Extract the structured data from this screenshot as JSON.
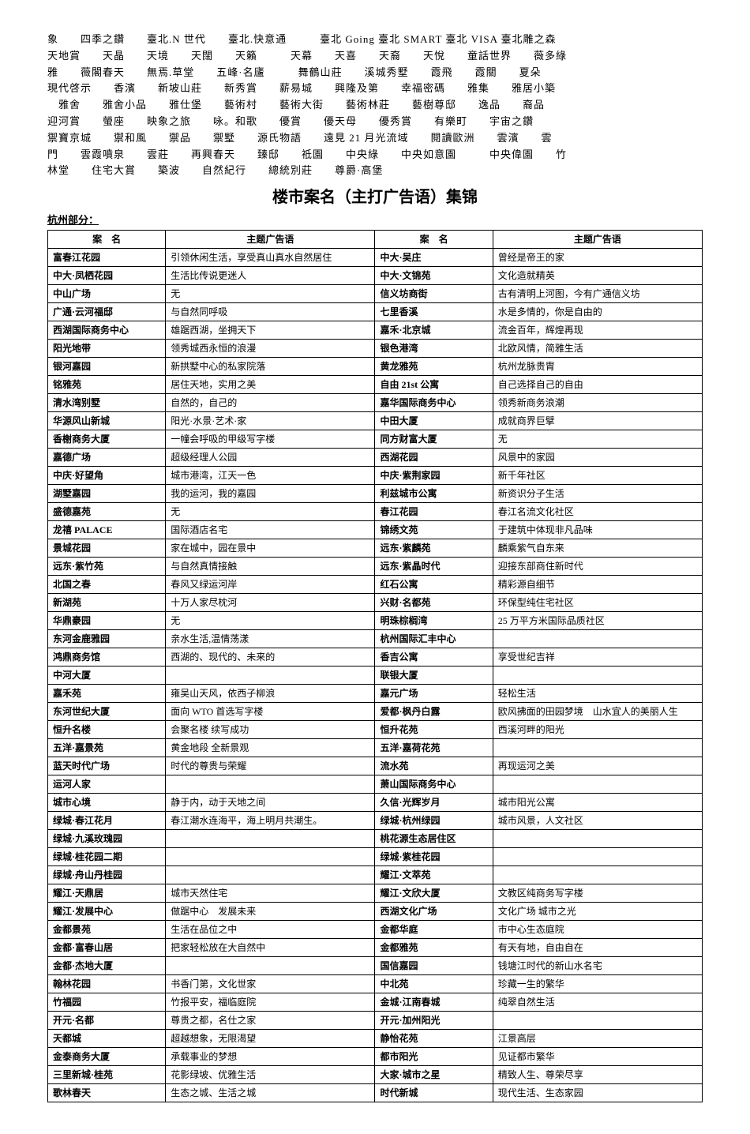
{
  "header": {
    "lines": [
      "象　　四季之鑽　　臺北.N 世代　　臺北.快意通　　　臺北 Going  臺北 SMART  臺北 VISA  臺北雕之森",
      "天地賞　　天晶　　天境　　天闊　　天籟　　　天幕　　天喜　　天裔　　天悅　　童話世界　　薇多綠",
      "雅　　薇閣春天　　無焉.草堂　　五峰·名廬　　　舞鶴山莊　　溪城秀墅　　霞飛　　霞關　　夏朵",
      "現代啓示　　香濱　　新坡山莊　　新秀賞　　薪易城　　興隆及第　　幸福密碼　　雅集　　雅居小築",
      "　雅舍　　雅舍小品　　雅仕堡　　藝術村　　藝術大街　　藝術林莊　　藝樹尊邸　　逸品　　裔品",
      "迎河賞　　螢座　　映象之旅　　咏。和歌　　優賞　　優天母　　優秀賞　　有樂町　　宇宙之鑽",
      "禦寶京城　　禦和風　　禦品　　禦墅　　源氏物語　　遠見 21  月光流域　　閱讀歐洲　　雲濱　　雲",
      "門　　雲霞噴泉　　雲莊　　再興春天　　臻邸　　祗園　　中央綠　　中央如意園　　　中央偉園　　竹",
      "林堂　　住宅大賞　　築波　　自然紀行　　總統別莊　　尊爵·高堡"
    ]
  },
  "title": "楼市案名（主打广告语）集锦",
  "section": "杭州部分：",
  "table": {
    "headers": [
      "案　名",
      "主题广告语",
      "案　名",
      "主题广告语"
    ],
    "rows": [
      [
        "富春江花园",
        "引领休闲生活，享受真山真水自然居住",
        "中大·吴庄",
        "曾经是帝王的家"
      ],
      [
        "中大·凤栖花园",
        "生活比传说更迷人",
        "中大·文锦苑",
        "文化造就精英"
      ],
      [
        "中山广场",
        "无",
        "信义坊商街",
        "古有清明上河图，今有广通信义坊"
      ],
      [
        "广通·云河福邸",
        "与自然同呼吸",
        "七里香溪",
        "水是多情的，你是自由的"
      ],
      [
        "西湖国际商务中心",
        "雄踞西湖，坐拥天下",
        "嘉禾·北京城",
        "流金百年，辉煌再现"
      ],
      [
        "阳光地带",
        "领秀城西永恒的浪漫",
        "银色港湾",
        "北欧风情，简雅生活"
      ],
      [
        "银河嘉园",
        "新拱墅中心的私家院落",
        "黄龙雅苑",
        "杭州龙脉贵胄"
      ],
      [
        "铭雅苑",
        "居住天地，实用之美",
        "自由 21st 公寓",
        "自己选择自己的自由"
      ],
      [
        "清水湾别墅",
        "自然的，自己的",
        "嘉华国际商务中心",
        "领秀新商务浪潮"
      ],
      [
        "华源风山新城",
        "阳光·水景·艺术·家",
        "中田大厦",
        "成就商界巨擘"
      ],
      [
        "香榭商务大厦",
        "一幢会呼吸的甲级写字楼",
        "同方财富大厦",
        "无"
      ],
      [
        "嘉德广场",
        "超级经理人公园",
        "西湖花园",
        "风景中的家园"
      ],
      [
        "中庆·好望角",
        "城市港湾，江天一色",
        "中庆·紫荆家园",
        "新千年社区"
      ],
      [
        "湖墅嘉园",
        "我的运河，我的嘉园",
        "利兹城市公寓",
        "新资识分子生活"
      ],
      [
        "盛德嘉苑",
        "无",
        "春江花园",
        "春江名流文化社区"
      ],
      [
        "龙禧 PALACE",
        "国际酒店名宅",
        "锦绣文苑",
        "于建筑中体现非凡品味"
      ],
      [
        "景城花园",
        "家在城中，园在景中",
        "远东·紫麟苑",
        "麟乘紫气自东来"
      ],
      [
        "远东·紫竹苑",
        "与自然真情接触",
        "远东·紫晶时代",
        "迎接东部商住新时代"
      ],
      [
        "北国之春",
        "春风又绿运河岸",
        "红石公寓",
        "精彩源自细节"
      ],
      [
        "新湖苑",
        "十万人家尽枕河",
        "兴财·名都苑",
        "环保型纯住宅社区"
      ],
      [
        "华鼎豪园",
        "无",
        "明珠棕榈湾",
        "25 万平方米国际品质社区"
      ],
      [
        "东河金鹿雅园",
        "亲水生活,温情荡漾",
        "杭州国际汇丰中心",
        ""
      ],
      [
        "鸿鼎商务馆",
        "西湖的、现代的、未来的",
        "香吉公寓",
        "享受世纪吉祥"
      ],
      [
        "中河大厦",
        "",
        "联银大厦",
        ""
      ],
      [
        "嘉禾苑",
        "雍吴山天风，依西子柳浪",
        "嘉元广场",
        "轻松生活"
      ],
      [
        "东河世纪大厦",
        "面向 WTO 首选写字楼",
        "爱都·枫丹白露",
        "欧风拂面的田园梦境　山水宜人的美丽人生"
      ],
      [
        "恒升名楼",
        "会聚名楼 续写成功",
        "恒升花苑",
        "西溪河畔的阳光"
      ],
      [
        "五洋·嘉景苑",
        "黄金地段 全新景观",
        "五洋·嘉荷花苑",
        ""
      ],
      [
        "蓝天时代广场",
        "时代的尊贵与荣耀",
        "流水苑",
        "再现运河之美"
      ],
      [
        "运河人家",
        "",
        "萧山国际商务中心",
        ""
      ],
      [
        "城市心境",
        "静于内，动于天地之间",
        "久信·光辉岁月",
        "城市阳光公寓"
      ],
      [
        "绿城·春江花月",
        "春江潮水连海平，海上明月共潮生。",
        "绿城·杭州绿园",
        "城市风景，人文社区"
      ],
      [
        "绿城·九溪玫瑰园",
        "",
        "桃花源生态居住区",
        ""
      ],
      [
        "绿城·桂花园二期",
        "",
        "绿城·紫桂花园",
        ""
      ],
      [
        "绿城·舟山丹桂园",
        "",
        "耀江·文萃苑",
        ""
      ],
      [
        "耀江·天鼎居",
        "城市天然住宅",
        "耀江·文欣大厦",
        "文教区纯商务写字楼"
      ],
      [
        "耀江·发展中心",
        "做踞中心　发展未来",
        "西湖文化广场",
        "文化广场 城市之光"
      ],
      [
        "金都景苑",
        "生活在品位之中",
        "金都华庭",
        "市中心生态庭院"
      ],
      [
        "金都·富春山居",
        "把家轻松放在大自然中",
        "金都雅苑",
        "有天有地，自由自在"
      ],
      [
        "金都·杰地大厦",
        "",
        "国信嘉园",
        "钱塘江时代的新山水名宅"
      ],
      [
        "翰林花园",
        "书香门第，文化世家",
        "中北苑",
        "珍藏一生的繁华"
      ],
      [
        "竹福园",
        "竹报平安，福临庭院",
        "金城·江南春城",
        "纯翠自然生活"
      ],
      [
        "开元·名都",
        "尊贵之都，名仕之家",
        "开元·加州阳光",
        ""
      ],
      [
        "天都城",
        "超越想象，无限渴望",
        "静怡花苑",
        "江景高层"
      ],
      [
        "金泰商务大厦",
        "承载事业的梦想",
        "都市阳光",
        "见证都市繁华"
      ],
      [
        "三里新城·桂苑",
        "花影绿坡、优雅生活",
        "大家·城市之星",
        "精致人生、尊荣尽享"
      ],
      [
        "歌林春天",
        "生态之城、生活之城",
        "时代新城",
        "现代生活、生态家园"
      ]
    ]
  }
}
